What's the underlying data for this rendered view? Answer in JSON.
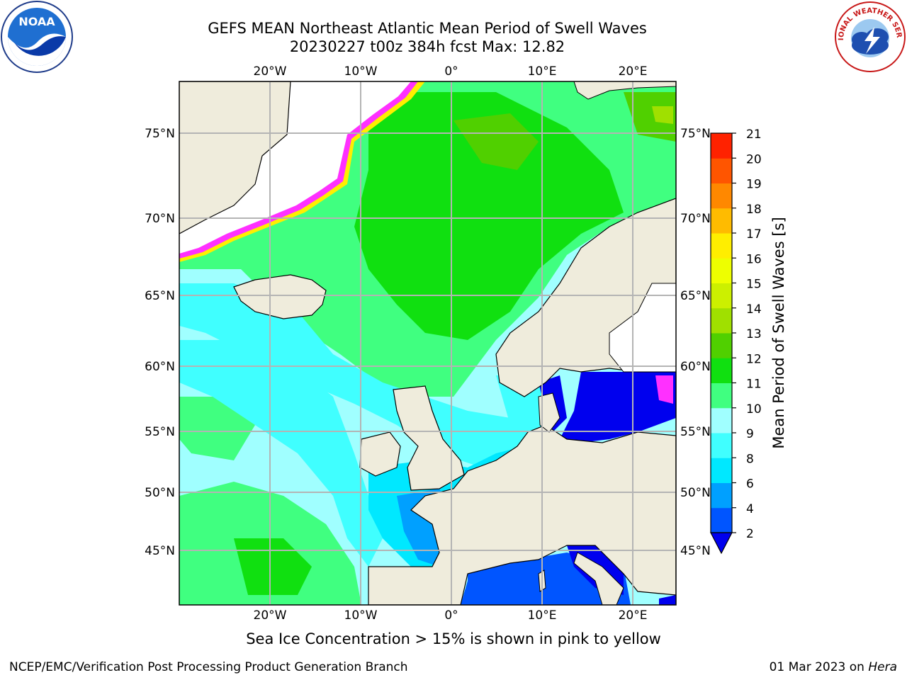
{
  "title_line1": "GEFS MEAN Northeast Atlantic Mean Period of Swell Waves",
  "title_line2": "20230227 t00z 384h fcst   Max: 12.82",
  "lon_labels": [
    "20°W",
    "10°W",
    "0°",
    "10°E",
    "20°E"
  ],
  "lat_labels": [
    "75°N",
    "70°N",
    "65°N",
    "60°N",
    "55°N",
    "50°N",
    "45°N"
  ],
  "colorbar": {
    "label": "Mean Period of Swell Waves [s]",
    "ticks": [
      "2",
      "4",
      "6",
      "8",
      "9",
      "10",
      "11",
      "12",
      "13",
      "14",
      "15",
      "16",
      "17",
      "18",
      "19",
      "20",
      "21"
    ],
    "colors": [
      "#0055ff",
      "#00a0ff",
      "#00e8ff",
      "#40ffff",
      "#a0ffff",
      "#40ff80",
      "#10e010",
      "#50d000",
      "#a0e000",
      "#ccf000",
      "#eeff00",
      "#ffee00",
      "#ffbb00",
      "#ff8800",
      "#ff5500",
      "#ff2200"
    ],
    "extend_color": "#0000ee"
  },
  "caption": "Sea Ice Concentration > 15% is shown in pink to yellow",
  "credit": "NCEP/EMC/Verification Post Processing Product Generation Branch",
  "date_prefix": "01 Mar 2023 on ",
  "date_machine": "Hera",
  "logos": {
    "left": "NOAA",
    "right": "NATIONAL WEATHER SERVICE"
  }
}
